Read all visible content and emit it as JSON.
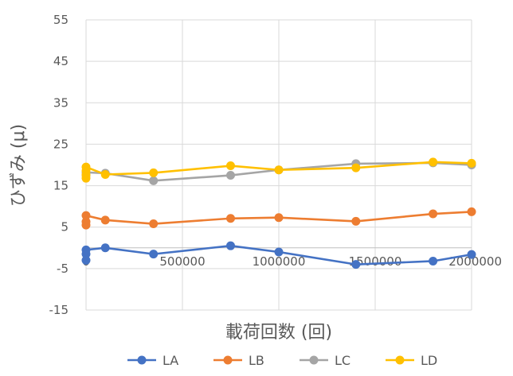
{
  "chart_data": {
    "type": "line",
    "title": "",
    "xlabel": "載荷回数 (回)",
    "ylabel": "ひずみ (μ)",
    "xlim": [
      0,
      2000000
    ],
    "ylim": [
      -15,
      55
    ],
    "x_ticks": [
      "0",
      "500000",
      "1000000",
      "1500000",
      "2000000"
    ],
    "y_ticks": [
      "-15",
      "-5",
      "5",
      "15",
      "25",
      "35",
      "45",
      "55"
    ],
    "grid": "vertical and horizontal major gridlines",
    "legend_position": "bottom",
    "series": [
      {
        "name": "LA",
        "color": "#4472C4",
        "points": [
          [
            0,
            -3
          ],
          [
            0,
            -1.5
          ],
          [
            0,
            -0.5
          ],
          [
            100000,
            0
          ],
          [
            350000,
            -1.5
          ],
          [
            750000,
            0.5
          ],
          [
            1000000,
            -1
          ],
          [
            1400000,
            -4
          ],
          [
            1800000,
            -3.2
          ],
          [
            2000000,
            -1.6
          ]
        ]
      },
      {
        "name": "LB",
        "color": "#ED7D31",
        "points": [
          [
            0,
            5.5
          ],
          [
            0,
            6.3
          ],
          [
            0,
            7.8
          ],
          [
            100000,
            6.7
          ],
          [
            350000,
            5.8
          ],
          [
            750000,
            7.1
          ],
          [
            1000000,
            7.3
          ],
          [
            1400000,
            6.4
          ],
          [
            1800000,
            8.2
          ],
          [
            2000000,
            8.7
          ]
        ]
      },
      {
        "name": "LC",
        "color": "#A5A5A5",
        "points": [
          [
            0,
            17.5
          ],
          [
            0,
            18.2
          ],
          [
            100000,
            18
          ],
          [
            350000,
            16.2
          ],
          [
            750000,
            17.5
          ],
          [
            1000000,
            18.8
          ],
          [
            1400000,
            20.3
          ],
          [
            1800000,
            20.5
          ],
          [
            2000000,
            20
          ]
        ]
      },
      {
        "name": "LD",
        "color": "#FFC000",
        "points": [
          [
            0,
            16.8
          ],
          [
            0,
            17.6
          ],
          [
            0,
            18.6
          ],
          [
            0,
            19.5
          ],
          [
            100000,
            17.7
          ],
          [
            350000,
            18.1
          ],
          [
            750000,
            19.8
          ],
          [
            1000000,
            18.8
          ],
          [
            1400000,
            19.3
          ],
          [
            1800000,
            20.7
          ],
          [
            2000000,
            20.4
          ]
        ]
      }
    ]
  }
}
